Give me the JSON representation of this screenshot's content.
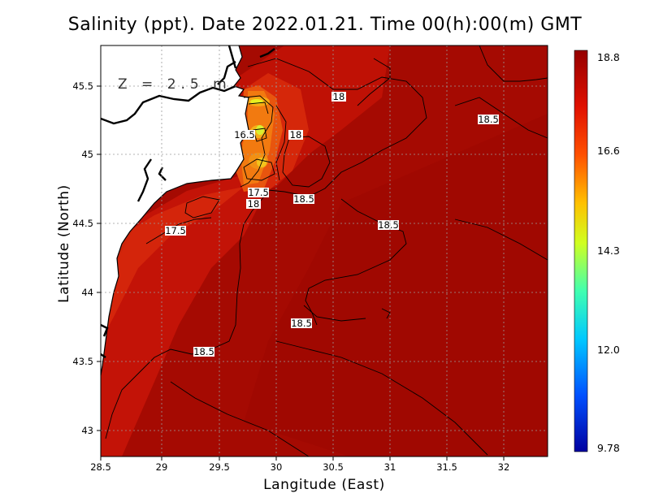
{
  "title": "Salinity (ppt). Date 2022.01.21. Time 00(h):00(m) GMT",
  "depth_label": "Z = 2.5 m",
  "xlabel": "Langitude (East)",
  "ylabel": "Latitude (North)",
  "axes": {
    "lon_range": [
      28.5,
      32.4
    ],
    "lat_range": [
      42.8,
      45.8
    ],
    "x_ticks": [
      "28.5",
      "29",
      "29.5",
      "30",
      "30.5",
      "31",
      "31.5",
      "32"
    ],
    "y_ticks": [
      "43",
      "43.5",
      "44",
      "44.5",
      "45",
      "45.5"
    ],
    "grid": true
  },
  "colorbar": {
    "ticks": [
      "18.8",
      "16.6",
      "14.3",
      "12.0",
      "9.78"
    ],
    "colors": [
      "#0000a0",
      "#0060ff",
      "#00d0ff",
      "#60ff90",
      "#f0f000",
      "#ff9000",
      "#ff2000",
      "#c00000",
      "#900000"
    ]
  },
  "contour_labels": [
    "18",
    "18.5",
    "16.5",
    "18",
    "17.5",
    "18.5",
    "18",
    "18.5",
    "17.5",
    "18.5",
    "18.5"
  ],
  "chart_data": {
    "type": "heatmap",
    "variable": "Salinity",
    "units": "ppt",
    "depth": "2.5 m",
    "date": "2022.01.21",
    "time": "00(h):00(m) GMT",
    "value_range": [
      9.78,
      18.8
    ],
    "contour_levels": [
      16.5,
      17,
      17.5,
      18,
      18.5
    ]
  }
}
